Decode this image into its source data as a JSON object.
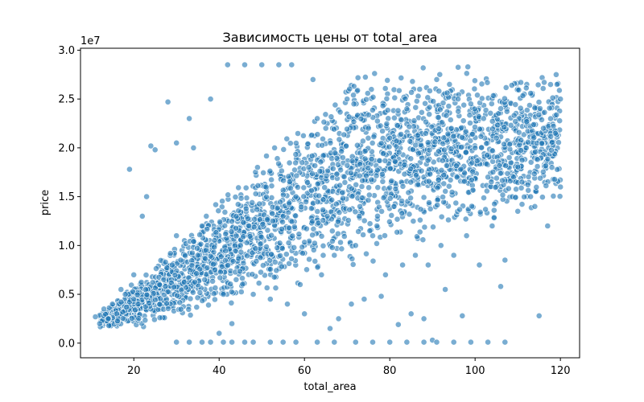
{
  "chart_data": {
    "type": "scatter",
    "title": "Зависимость цены от total_area",
    "xlabel": "total_area",
    "ylabel": "price",
    "y_offset_label": "1e7",
    "xlim": [
      7.5,
      124.5
    ],
    "ylim": [
      -1500000,
      30200000
    ],
    "x_ticks": [
      20,
      40,
      60,
      80,
      100,
      120
    ],
    "x_tick_labels": [
      "20",
      "40",
      "60",
      "80",
      "100",
      "120"
    ],
    "y_ticks": [
      0,
      5000000,
      10000000,
      15000000,
      20000000,
      25000000,
      30000000
    ],
    "y_tick_labels": [
      "0.0",
      "0.5",
      "1.0",
      "1.5",
      "2.0",
      "2.5",
      "3.0"
    ],
    "grid": false,
    "legend": "none",
    "marker_color": "#1f77b4",
    "marker_alpha": 0.6,
    "series": [
      {
        "x": [
          19,
          24,
          25,
          28,
          23,
          22,
          33,
          30,
          115,
          106,
          97,
          90,
          88,
          85,
          78,
          74,
          71,
          68,
          82,
          93,
          101,
          107,
          62,
          57,
          54,
          50,
          46,
          42,
          38,
          34,
          30,
          31,
          35,
          39,
          41,
          44,
          48,
          52,
          56,
          59,
          64,
          67,
          72,
          77,
          81,
          40,
          43,
          60,
          66,
          100,
          103,
          112,
          118,
          120,
          120,
          119,
          116,
          113,
          110,
          104,
          98,
          95,
          92,
          89,
          86,
          83,
          79,
          76,
          73,
          69,
          65,
          61,
          58,
          55,
          51,
          47,
          45,
          36,
          32,
          29,
          26,
          21,
          18,
          16,
          14,
          12,
          11,
          13,
          15,
          17,
          20,
          27,
          37,
          49,
          53,
          63,
          70,
          75,
          80,
          84,
          87,
          91,
          94,
          96,
          99,
          102,
          105,
          108,
          109,
          111,
          114,
          117,
          30,
          33,
          36,
          38,
          41,
          43,
          46,
          48,
          52,
          55,
          58,
          63,
          67,
          72,
          76,
          80,
          84,
          88,
          91,
          95,
          99,
          103,
          107
        ],
        "y": [
          17800000,
          20200000,
          19800000,
          24700000,
          15000000,
          13000000,
          23000000,
          20500000,
          2800000,
          5800000,
          2800000,
          300000,
          2500000,
          3000000,
          4800000,
          4500000,
          4000000,
          2500000,
          1900000,
          5500000,
          8000000,
          8500000,
          27000000,
          28500000,
          28500000,
          28500000,
          28500000,
          28500000,
          25000000,
          20000000,
          11000000,
          8500000,
          9000000,
          7500000,
          5000000,
          6500000,
          5000000,
          4500000,
          4000000,
          6000000,
          7000000,
          9000000,
          10000000,
          12000000,
          14000000,
          1000000,
          2000000,
          3000000,
          1500000,
          20000000,
          17000000,
          20000000,
          18000000,
          16000000,
          25000000,
          27500000,
          22000000,
          15000000,
          13500000,
          12000000,
          11000000,
          9000000,
          10000000,
          8000000,
          9000000,
          8000000,
          7000000,
          11000000,
          14000000,
          19000000,
          22000000,
          18000000,
          15000000,
          13000000,
          16000000,
          12000000,
          10000000,
          12000000,
          9000000,
          8000000,
          6000000,
          4000000,
          5000000,
          3000000,
          2500000,
          2000000,
          2700000,
          3500000,
          4000000,
          5500000,
          7000000,
          6500000,
          13000000,
          18000000,
          20000000,
          23000000,
          25000000,
          22000000,
          21000000,
          24000000,
          26000000,
          27000000,
          26500000,
          25000000,
          24500000,
          23000000,
          21000000,
          19000000,
          17000000,
          16500000,
          14000000,
          12000000,
          100000,
          100000,
          100000,
          100000,
          100000,
          100000,
          100000,
          100000,
          100000,
          100000,
          100000,
          100000,
          100000,
          100000,
          100000,
          100000,
          100000,
          100000,
          100000,
          100000,
          100000,
          100000,
          100000
        ]
      }
    ]
  }
}
